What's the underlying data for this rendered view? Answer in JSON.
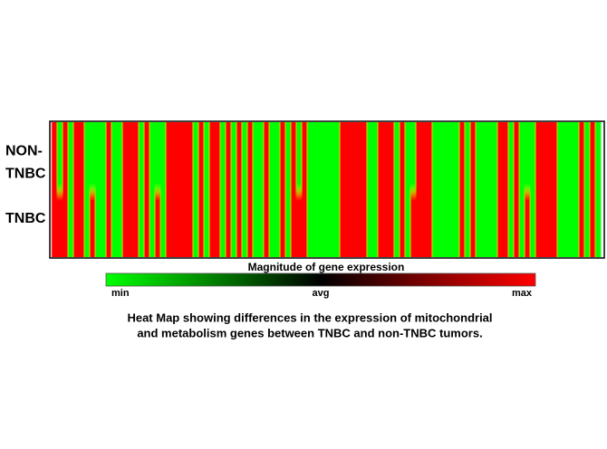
{
  "chart_data": {
    "type": "heatmap",
    "rows": [
      "NON-TNBC",
      "TNBC"
    ],
    "values": [
      [
        1,
        -1,
        1,
        -1,
        1,
        1,
        -1,
        -1,
        -1,
        -1,
        1,
        -1,
        -1,
        1,
        1,
        1,
        -1,
        1,
        -1,
        -1,
        -1,
        1,
        1,
        1,
        1,
        1,
        -1,
        1,
        -1,
        1,
        1,
        -1,
        1,
        -1,
        1,
        -1,
        1,
        -1,
        -1,
        1,
        -1,
        -1,
        1,
        -1,
        1,
        -1,
        1,
        -1,
        -1,
        -1,
        -1,
        -1,
        -1,
        1,
        1,
        1,
        1,
        1,
        -1,
        -1,
        1,
        1,
        1,
        -1,
        1,
        -1,
        -1,
        1,
        1,
        1,
        -1,
        -1,
        -1,
        -1,
        -1,
        1,
        -1,
        1,
        -1,
        -1,
        -1,
        -1,
        1,
        1,
        -1,
        1,
        -1,
        -1,
        -1,
        1,
        1,
        1,
        1,
        -1,
        -1,
        -1,
        -1,
        1,
        -1,
        1,
        -1
      ],
      [
        1,
        1,
        1,
        -1,
        1,
        1,
        -1,
        1,
        -1,
        -1,
        1,
        -1,
        -1,
        1,
        1,
        1,
        -1,
        1,
        -1,
        1,
        -1,
        1,
        1,
        1,
        1,
        1,
        -1,
        1,
        -1,
        1,
        1,
        -1,
        1,
        -1,
        1,
        -1,
        1,
        -1,
        -1,
        1,
        -1,
        -1,
        1,
        -1,
        1,
        1,
        1,
        -1,
        -1,
        -1,
        -1,
        -1,
        -1,
        1,
        1,
        1,
        1,
        1,
        -1,
        -1,
        1,
        1,
        1,
        -1,
        1,
        -1,
        1,
        1,
        1,
        1,
        -1,
        -1,
        -1,
        -1,
        -1,
        1,
        -1,
        1,
        -1,
        -1,
        -1,
        -1,
        1,
        1,
        -1,
        1,
        -1,
        1,
        -1,
        1,
        1,
        1,
        1,
        -1,
        -1,
        -1,
        -1,
        1,
        -1,
        1,
        -1
      ]
    ],
    "colormap": [
      "#00ff00",
      "#000000",
      "#ff0000"
    ],
    "zlim": [
      -1,
      1
    ],
    "colorbar_title": "Magnitude of gene expression",
    "colorbar_ticks": [
      {
        "value": -1,
        "label": "min"
      },
      {
        "value": 0,
        "label": "avg"
      },
      {
        "value": 1,
        "label": "max"
      }
    ],
    "caption": [
      "Heat Map showing differences in the expression of mitochondrial",
      "and metabolism genes between TNBC and non-TNBC tumors."
    ]
  }
}
